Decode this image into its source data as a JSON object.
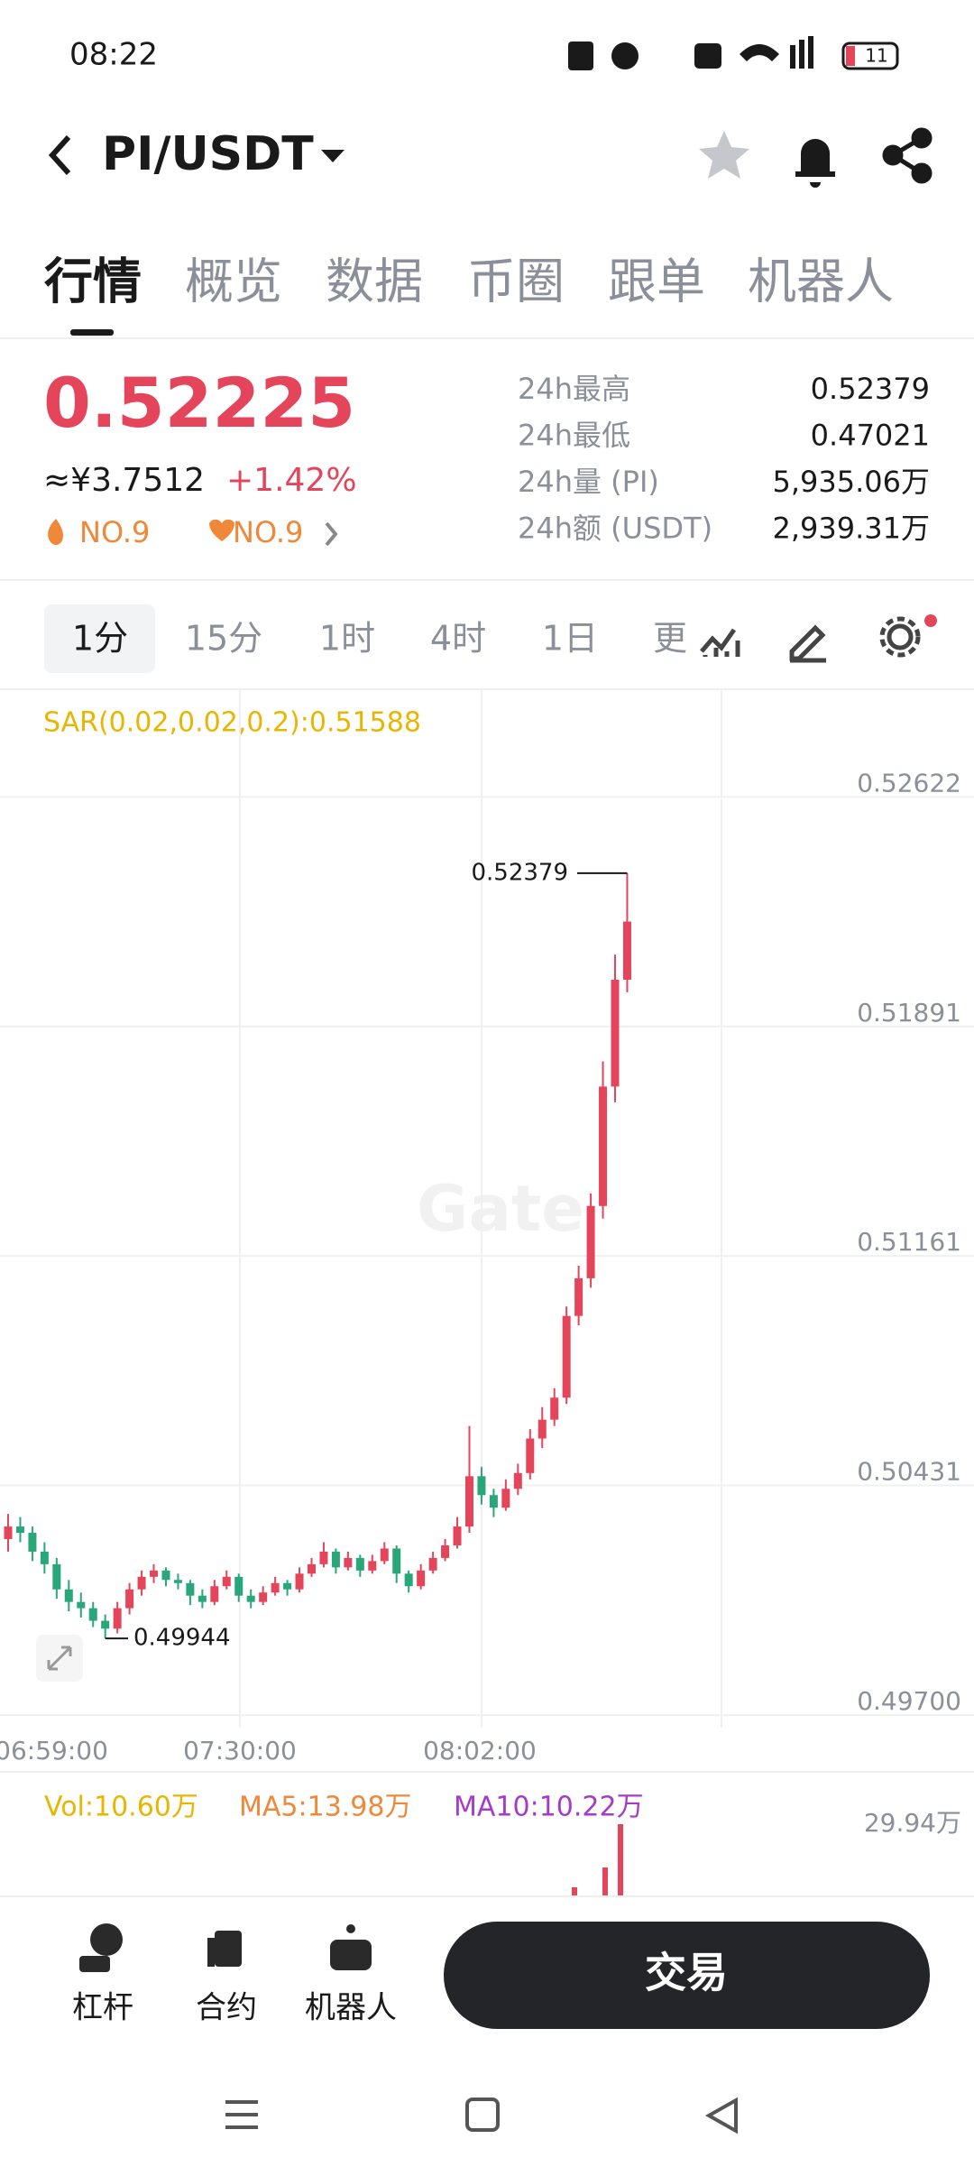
{
  "status_bar": {
    "time": "08:22",
    "battery": "11"
  },
  "header": {
    "pair": "PI/USDT"
  },
  "tabs": [
    "行情",
    "概览",
    "数据",
    "币圈",
    "跟单",
    "机器人"
  ],
  "ticker": {
    "price": "0.52225",
    "cny": "≈¥3.7512",
    "change": "+1.42%",
    "rank_hot": "NO.9",
    "rank_fav": "NO.9",
    "stats": [
      {
        "label": "24h最高",
        "value": "0.52379"
      },
      {
        "label": "24h最低",
        "value": "0.47021"
      },
      {
        "label": "24h量 (PI)",
        "value": "5,935.06万"
      },
      {
        "label": "24h额 (USDT)",
        "value": "2,939.31万"
      }
    ]
  },
  "timeframes": [
    "1分",
    "15分",
    "1时",
    "4时",
    "1日",
    "更"
  ],
  "chart": {
    "indicator": "SAR(0.02,0.02,0.2):0.51588",
    "watermark": "Gate",
    "ylim": [
      0.4966,
      0.5295
    ],
    "yticks": [
      0.52622,
      0.51891,
      0.51161,
      0.50431,
      {
        "value": 0.497,
        "label": "0.49700"
      }
    ],
    "xlabels": [
      "06:59:00",
      "07:30:00",
      "08:02:00"
    ],
    "max": 0.52379,
    "min": 0.49944,
    "candles": [
      [
        0.5026,
        0.5034,
        0.5022,
        0.503
      ],
      [
        0.503,
        0.5033,
        0.5025,
        0.5028
      ],
      [
        0.5028,
        0.503,
        0.5019,
        0.5022
      ],
      [
        0.5022,
        0.5025,
        0.5015,
        0.5018
      ],
      [
        0.5018,
        0.502,
        0.5007,
        0.501
      ],
      [
        0.501,
        0.5013,
        0.5003,
        0.5006
      ],
      [
        0.5006,
        0.5009,
        0.5001,
        0.5004
      ],
      [
        0.5004,
        0.5006,
        0.4998,
        0.5
      ],
      [
        0.5,
        0.5002,
        0.49944,
        0.49975
      ],
      [
        0.49975,
        0.5006,
        0.4996,
        0.5004
      ],
      [
        0.5004,
        0.5012,
        0.5002,
        0.501
      ],
      [
        0.501,
        0.5016,
        0.5008,
        0.5014
      ],
      [
        0.5014,
        0.5018,
        0.5012,
        0.5016
      ],
      [
        0.5016,
        0.5017,
        0.5011,
        0.5013
      ],
      [
        0.5013,
        0.5015,
        0.501,
        0.5012
      ],
      [
        0.5012,
        0.5013,
        0.5005,
        0.5008
      ],
      [
        0.5008,
        0.501,
        0.5004,
        0.5006
      ],
      [
        0.5006,
        0.5013,
        0.5005,
        0.5011
      ],
      [
        0.5011,
        0.5016,
        0.501,
        0.5014
      ],
      [
        0.5014,
        0.5015,
        0.5006,
        0.5008
      ],
      [
        0.5008,
        0.501,
        0.5004,
        0.5006
      ],
      [
        0.5006,
        0.5011,
        0.5005,
        0.5009
      ],
      [
        0.5009,
        0.5014,
        0.5008,
        0.5012
      ],
      [
        0.5012,
        0.5013,
        0.5008,
        0.501
      ],
      [
        0.501,
        0.5017,
        0.5009,
        0.5015
      ],
      [
        0.5015,
        0.502,
        0.5014,
        0.5018
      ],
      [
        0.5018,
        0.5025,
        0.5017,
        0.5022
      ],
      [
        0.5022,
        0.5023,
        0.5015,
        0.5017
      ],
      [
        0.5017,
        0.5022,
        0.5016,
        0.502
      ],
      [
        0.502,
        0.5021,
        0.5014,
        0.5016
      ],
      [
        0.5016,
        0.5021,
        0.5015,
        0.5019
      ],
      [
        0.5019,
        0.5025,
        0.5018,
        0.5023
      ],
      [
        0.5023,
        0.5024,
        0.5012,
        0.5015
      ],
      [
        0.5015,
        0.5016,
        0.5009,
        0.5011
      ],
      [
        0.5011,
        0.5018,
        0.501,
        0.5016
      ],
      [
        0.5016,
        0.5022,
        0.5015,
        0.502
      ],
      [
        0.502,
        0.5026,
        0.5019,
        0.5024
      ],
      [
        0.5024,
        0.5033,
        0.5023,
        0.503
      ],
      [
        0.503,
        0.5062,
        0.5028,
        0.5046
      ],
      [
        0.5046,
        0.5049,
        0.5037,
        0.504
      ],
      [
        0.504,
        0.5042,
        0.5033,
        0.5036
      ],
      [
        0.5036,
        0.5045,
        0.5035,
        0.5042
      ],
      [
        0.5042,
        0.505,
        0.504,
        0.5047
      ],
      [
        0.5047,
        0.5061,
        0.5045,
        0.5058
      ],
      [
        0.5058,
        0.5068,
        0.5055,
        0.5064
      ],
      [
        0.5064,
        0.5074,
        0.5062,
        0.5071
      ],
      [
        0.5071,
        0.51,
        0.5069,
        0.5097
      ],
      [
        0.5097,
        0.5113,
        0.5094,
        0.5109
      ],
      [
        0.5109,
        0.5136,
        0.5106,
        0.5132
      ],
      [
        0.5132,
        0.5178,
        0.5128,
        0.517
      ],
      [
        0.517,
        0.5212,
        0.5165,
        0.5204
      ],
      [
        0.5204,
        0.52379,
        0.52,
        0.52225
      ]
    ]
  },
  "volume": {
    "vol": "Vol:10.60万",
    "ma5": "MA5:13.98万",
    "ma10": "MA10:10.22万",
    "axis_max": "29.94万"
  },
  "bottom_nav": {
    "items": [
      "杠杆",
      "合约",
      "机器人"
    ],
    "trade": "交易"
  }
}
